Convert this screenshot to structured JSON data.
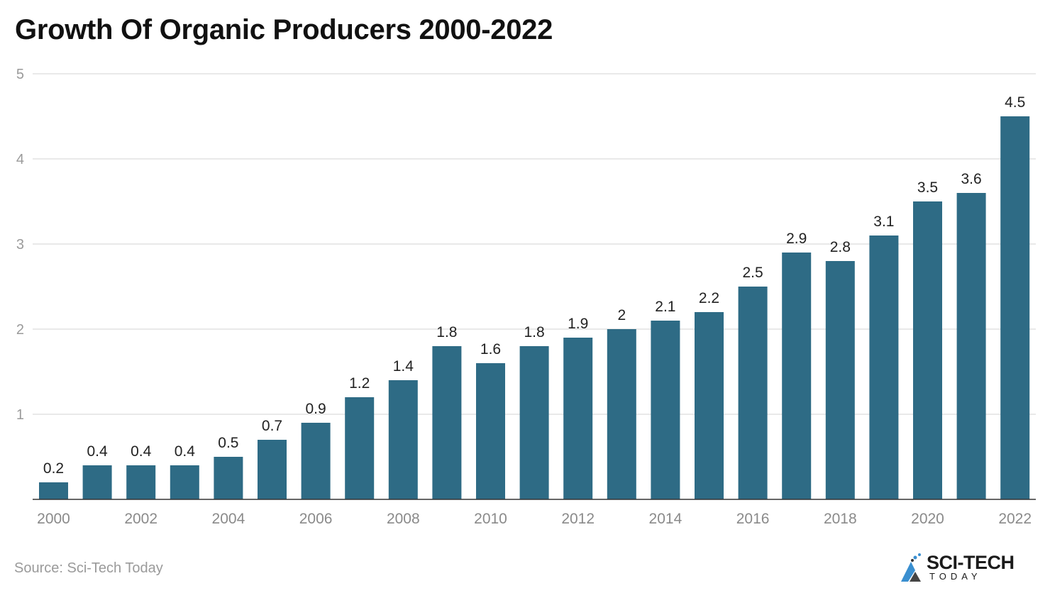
{
  "chart_data": {
    "type": "bar",
    "title": "Growth Of Organic Producers 2000-2022",
    "xlabel": "",
    "ylabel": "",
    "categories": [
      "2000",
      "2001",
      "2002",
      "2003",
      "2004",
      "2005",
      "2006",
      "2007",
      "2008",
      "2009",
      "2010",
      "2011",
      "2012",
      "2013",
      "2014",
      "2015",
      "2016",
      "2017",
      "2018",
      "2019",
      "2020",
      "2021",
      "2022"
    ],
    "x_tick_labels": [
      "2000",
      "2002",
      "2004",
      "2006",
      "2008",
      "2010",
      "2012",
      "2014",
      "2016",
      "2018",
      "2020",
      "2022"
    ],
    "values": [
      0.2,
      0.4,
      0.4,
      0.4,
      0.5,
      0.7,
      0.9,
      1.2,
      1.4,
      1.8,
      1.6,
      1.8,
      1.9,
      2,
      2.1,
      2.2,
      2.5,
      2.9,
      2.8,
      3.1,
      3.5,
      3.6,
      4.5
    ],
    "ylim": [
      0,
      5
    ],
    "y_ticks": [
      1,
      2,
      3,
      4,
      5
    ],
    "grid": true,
    "data_labels": true,
    "bar_color": "#2e6b85"
  },
  "source": "Source: Sci-Tech Today",
  "logo": {
    "main": "SCI-TECH",
    "sub": "TODAY"
  }
}
